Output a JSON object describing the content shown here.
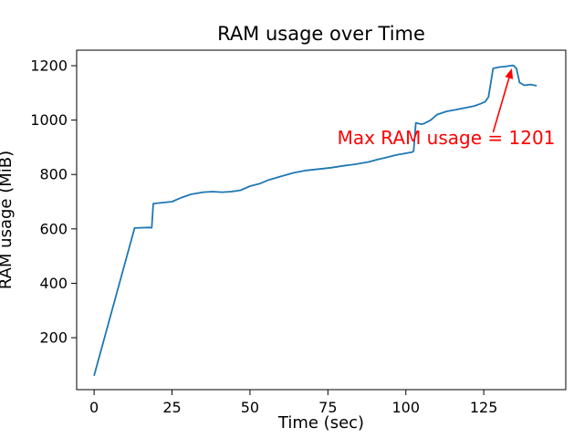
{
  "chart_data": {
    "type": "line",
    "title": "RAM usage over Time",
    "xlabel": "Time (sec)",
    "ylabel": "RAM usage (MiB)",
    "xlim": [
      -5.6,
      151.3
    ],
    "ylim": [
      9,
      1257
    ],
    "xticks": [
      0,
      25,
      50,
      75,
      100,
      125
    ],
    "yticks": [
      200,
      400,
      600,
      800,
      1000,
      1200
    ],
    "grid": false,
    "legend": "none",
    "line_color": "#1f77b4",
    "x": [
      0,
      13,
      17.5,
      18.5,
      19,
      25,
      28,
      31,
      35,
      38,
      41,
      44,
      47,
      50,
      53,
      56,
      60,
      64,
      68,
      72,
      76,
      80,
      84,
      88,
      91,
      94,
      97,
      100,
      102,
      102.5,
      103.2,
      105,
      106,
      108,
      110,
      113,
      116,
      119,
      122,
      124,
      125.5,
      126.5,
      128,
      130,
      132,
      133.5,
      134.5,
      135.5,
      136.5,
      138,
      140,
      142
    ],
    "y": [
      60,
      603,
      605,
      604,
      693,
      700,
      715,
      727,
      735,
      737,
      735,
      737,
      742,
      757,
      766,
      780,
      793,
      806,
      815,
      820,
      825,
      832,
      838,
      846,
      855,
      863,
      872,
      878,
      882,
      886,
      990,
      985,
      988,
      1000,
      1020,
      1032,
      1038,
      1045,
      1052,
      1060,
      1068,
      1085,
      1190,
      1195,
      1197,
      1200,
      1201,
      1190,
      1138,
      1128,
      1131,
      1126
    ],
    "annotation": {
      "text": "Max RAM usage = 1201",
      "color": "#ff0000",
      "text_pos": [
        78,
        911
      ],
      "arrow_from": [
        128,
        955
      ],
      "arrow_to": [
        134,
        1190
      ]
    }
  }
}
